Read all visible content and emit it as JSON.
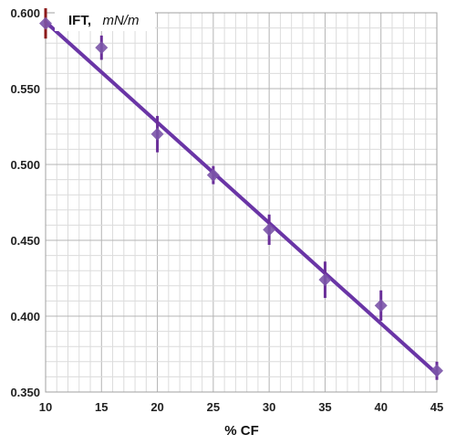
{
  "chart_data": {
    "type": "scatter",
    "ylabel_main": "IFT,",
    "ylabel_unit": "mN/m",
    "xlabel": "% CF",
    "xlim": [
      10,
      45
    ],
    "ylim": [
      0.35,
      0.6
    ],
    "x_ticks": [
      10,
      15,
      20,
      25,
      30,
      35,
      40,
      45
    ],
    "y_ticks": [
      "0.350",
      "0.400",
      "0.450",
      "0.500",
      "0.550",
      "0.600"
    ],
    "grid": true,
    "legend": "none",
    "marker_color": "#7b55a8",
    "trend_color": "#6a35a6",
    "errorbar_color": "#6a2f99",
    "first_errorbar_color": "#8b1a1a",
    "points": [
      {
        "x": 10,
        "y": 0.593,
        "err": 0.01
      },
      {
        "x": 15,
        "y": 0.577,
        "err": 0.008
      },
      {
        "x": 20,
        "y": 0.52,
        "err": 0.012
      },
      {
        "x": 25,
        "y": 0.493,
        "err": 0.006
      },
      {
        "x": 30,
        "y": 0.457,
        "err": 0.01
      },
      {
        "x": 35,
        "y": 0.424,
        "err": 0.012
      },
      {
        "x": 40,
        "y": 0.407,
        "err": 0.01
      },
      {
        "x": 45,
        "y": 0.364,
        "err": 0.006
      }
    ],
    "trendline": {
      "x": [
        10,
        45
      ],
      "y": [
        0.594,
        0.362
      ]
    }
  }
}
